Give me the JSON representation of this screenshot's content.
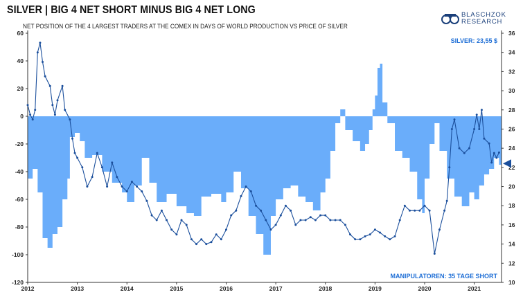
{
  "header": {
    "title": "SILVER | BIG 4 NET SHORT MINUS BIG 4 NET LONG",
    "subtitle": "NET POSITION OF THE 4 LARGEST TRADERS AT THE COMEX IN DAYS OF WORLD PRODUCTION VS PRICE OF SILVER"
  },
  "logo": {
    "line1": "BLASCHZOK",
    "line2": "RESEARCH"
  },
  "colors": {
    "area": "#6aadfa",
    "line": "#1b4f9c",
    "annotation": "#1f6fd6"
  },
  "chart_data": {
    "type": "area",
    "title": "SILVER | BIG 4 NET SHORT MINUS BIG 4 NET LONG",
    "xlim": [
      2012.0,
      2021.55
    ],
    "x_ticks": [
      "2012",
      "2013",
      "2014",
      "2015",
      "2016",
      "2017",
      "2018",
      "2019",
      "2020",
      "2021"
    ],
    "left_axis": {
      "ylim": [
        -120,
        60
      ],
      "ticks": [
        "60",
        "40",
        "20",
        "0",
        "-20",
        "-40",
        "-60",
        "-80",
        "-100",
        "-120"
      ]
    },
    "right_axis": {
      "ylim": [
        10,
        36
      ],
      "ticks": [
        "36",
        "34",
        "32",
        "30",
        "28",
        "26",
        "24",
        "22",
        "20",
        "18",
        "16",
        "14",
        "12",
        "10"
      ]
    },
    "series": [
      {
        "type": "area",
        "axis": "left",
        "points": [
          [
            2012.0,
            -45
          ],
          [
            2012.1,
            -38
          ],
          [
            2012.2,
            -55
          ],
          [
            2012.3,
            -88
          ],
          [
            2012.4,
            -95
          ],
          [
            2012.5,
            -85
          ],
          [
            2012.6,
            -80
          ],
          [
            2012.7,
            -60
          ],
          [
            2012.8,
            -45
          ],
          [
            2012.85,
            -15
          ],
          [
            2012.95,
            -12
          ],
          [
            2013.05,
            -18
          ],
          [
            2013.15,
            -30
          ],
          [
            2013.3,
            -28
          ],
          [
            2013.5,
            -40
          ],
          [
            2013.7,
            -48
          ],
          [
            2013.9,
            -55
          ],
          [
            2014.0,
            -62
          ],
          [
            2014.15,
            -50
          ],
          [
            2014.3,
            -30
          ],
          [
            2014.45,
            -48
          ],
          [
            2014.6,
            -62
          ],
          [
            2014.8,
            -56
          ],
          [
            2015.0,
            -65
          ],
          [
            2015.2,
            -70
          ],
          [
            2015.35,
            -72
          ],
          [
            2015.5,
            -58
          ],
          [
            2015.7,
            -56
          ],
          [
            2015.9,
            -62
          ],
          [
            2016.0,
            -55
          ],
          [
            2016.15,
            -40
          ],
          [
            2016.3,
            -52
          ],
          [
            2016.45,
            -72
          ],
          [
            2016.6,
            -85
          ],
          [
            2016.75,
            -100
          ],
          [
            2016.9,
            -72
          ],
          [
            2017.0,
            -60
          ],
          [
            2017.15,
            -52
          ],
          [
            2017.3,
            -50
          ],
          [
            2017.45,
            -58
          ],
          [
            2017.6,
            -62
          ],
          [
            2017.75,
            -68
          ],
          [
            2017.9,
            -55
          ],
          [
            2018.0,
            -45
          ],
          [
            2018.1,
            -25
          ],
          [
            2018.2,
            -5
          ],
          [
            2018.3,
            5
          ],
          [
            2018.4,
            -10
          ],
          [
            2018.55,
            -18
          ],
          [
            2018.7,
            -25
          ],
          [
            2018.8,
            -20
          ],
          [
            2018.88,
            -10
          ],
          [
            2018.95,
            5
          ],
          [
            2019.0,
            15
          ],
          [
            2019.05,
            35
          ],
          [
            2019.1,
            38
          ],
          [
            2019.15,
            10
          ],
          [
            2019.25,
            -5
          ],
          [
            2019.4,
            -25
          ],
          [
            2019.55,
            -30
          ],
          [
            2019.7,
            -40
          ],
          [
            2019.85,
            -60
          ],
          [
            2019.95,
            -70
          ],
          [
            2020.0,
            -45
          ],
          [
            2020.1,
            -20
          ],
          [
            2020.2,
            -5
          ],
          [
            2020.3,
            -25
          ],
          [
            2020.45,
            -45
          ],
          [
            2020.6,
            -58
          ],
          [
            2020.75,
            -65
          ],
          [
            2020.9,
            -55
          ],
          [
            2021.0,
            -60
          ],
          [
            2021.1,
            -50
          ],
          [
            2021.2,
            -42
          ],
          [
            2021.3,
            -38
          ],
          [
            2021.4,
            -30
          ],
          [
            2021.5,
            -35
          ]
        ]
      },
      {
        "name": "SILVER",
        "type": "line",
        "axis": "right",
        "points": [
          [
            2012.0,
            28.5
          ],
          [
            2012.05,
            27.5
          ],
          [
            2012.1,
            27.0
          ],
          [
            2012.15,
            28.0
          ],
          [
            2012.2,
            34.0
          ],
          [
            2012.25,
            35.0
          ],
          [
            2012.3,
            33.0
          ],
          [
            2012.35,
            31.5
          ],
          [
            2012.45,
            30.5
          ],
          [
            2012.5,
            28.5
          ],
          [
            2012.55,
            27.5
          ],
          [
            2012.6,
            29.0
          ],
          [
            2012.7,
            30.5
          ],
          [
            2012.75,
            28.0
          ],
          [
            2012.85,
            27.0
          ],
          [
            2012.9,
            25.0
          ],
          [
            2012.95,
            23.5
          ],
          [
            2013.0,
            23.0
          ],
          [
            2013.1,
            22.0
          ],
          [
            2013.2,
            20.0
          ],
          [
            2013.3,
            21.0
          ],
          [
            2013.4,
            23.5
          ],
          [
            2013.5,
            22.0
          ],
          [
            2013.6,
            20.0
          ],
          [
            2013.7,
            22.5
          ],
          [
            2013.8,
            21.0
          ],
          [
            2013.9,
            20.0
          ],
          [
            2014.0,
            19.5
          ],
          [
            2014.1,
            20.5
          ],
          [
            2014.2,
            20.0
          ],
          [
            2014.3,
            19.5
          ],
          [
            2014.4,
            18.5
          ],
          [
            2014.5,
            17.0
          ],
          [
            2014.6,
            16.5
          ],
          [
            2014.7,
            17.5
          ],
          [
            2014.8,
            16.5
          ],
          [
            2014.9,
            15.5
          ],
          [
            2015.0,
            15.0
          ],
          [
            2015.1,
            16.5
          ],
          [
            2015.2,
            16.0
          ],
          [
            2015.3,
            14.5
          ],
          [
            2015.4,
            14.0
          ],
          [
            2015.5,
            14.5
          ],
          [
            2015.6,
            14.0
          ],
          [
            2015.7,
            14.2
          ],
          [
            2015.8,
            15.0
          ],
          [
            2015.9,
            14.5
          ],
          [
            2016.0,
            15.5
          ],
          [
            2016.1,
            17.0
          ],
          [
            2016.2,
            17.5
          ],
          [
            2016.3,
            19.0
          ],
          [
            2016.4,
            20.0
          ],
          [
            2016.5,
            19.5
          ],
          [
            2016.6,
            18.0
          ],
          [
            2016.7,
            17.5
          ],
          [
            2016.8,
            16.5
          ],
          [
            2016.9,
            15.5
          ],
          [
            2017.0,
            16.0
          ],
          [
            2017.1,
            17.0
          ],
          [
            2017.2,
            18.0
          ],
          [
            2017.3,
            17.5
          ],
          [
            2017.4,
            16.0
          ],
          [
            2017.5,
            16.5
          ],
          [
            2017.6,
            16.5
          ],
          [
            2017.7,
            16.8
          ],
          [
            2017.8,
            16.5
          ],
          [
            2017.9,
            17.0
          ],
          [
            2018.0,
            17.0
          ],
          [
            2018.1,
            16.5
          ],
          [
            2018.2,
            16.5
          ],
          [
            2018.3,
            16.5
          ],
          [
            2018.4,
            16.0
          ],
          [
            2018.5,
            15.0
          ],
          [
            2018.6,
            14.5
          ],
          [
            2018.7,
            14.5
          ],
          [
            2018.8,
            14.8
          ],
          [
            2018.9,
            15.0
          ],
          [
            2019.0,
            15.5
          ],
          [
            2019.1,
            15.2
          ],
          [
            2019.2,
            14.8
          ],
          [
            2019.3,
            14.5
          ],
          [
            2019.4,
            14.8
          ],
          [
            2019.5,
            16.5
          ],
          [
            2019.6,
            18.0
          ],
          [
            2019.7,
            17.5
          ],
          [
            2019.8,
            17.5
          ],
          [
            2019.9,
            17.5
          ],
          [
            2020.0,
            18.0
          ],
          [
            2020.1,
            17.5
          ],
          [
            2020.2,
            13.0
          ],
          [
            2020.3,
            15.5
          ],
          [
            2020.4,
            17.5
          ],
          [
            2020.45,
            18.5
          ],
          [
            2020.5,
            22.0
          ],
          [
            2020.55,
            26.0
          ],
          [
            2020.6,
            27.0
          ],
          [
            2020.7,
            24.0
          ],
          [
            2020.8,
            23.5
          ],
          [
            2020.9,
            24.0
          ],
          [
            2021.0,
            26.0
          ],
          [
            2021.05,
            27.5
          ],
          [
            2021.1,
            26.0
          ],
          [
            2021.15,
            28.0
          ],
          [
            2021.2,
            25.0
          ],
          [
            2021.3,
            24.5
          ],
          [
            2021.35,
            22.5
          ],
          [
            2021.4,
            23.5
          ],
          [
            2021.45,
            23.0
          ],
          [
            2021.5,
            23.55
          ]
        ]
      }
    ],
    "annotations": {
      "price_label": "SILVER: 23,55 $",
      "position_label": "MANIPULATOREN: 35 TAGE SHORT"
    },
    "marker_value_right": 22.4
  }
}
